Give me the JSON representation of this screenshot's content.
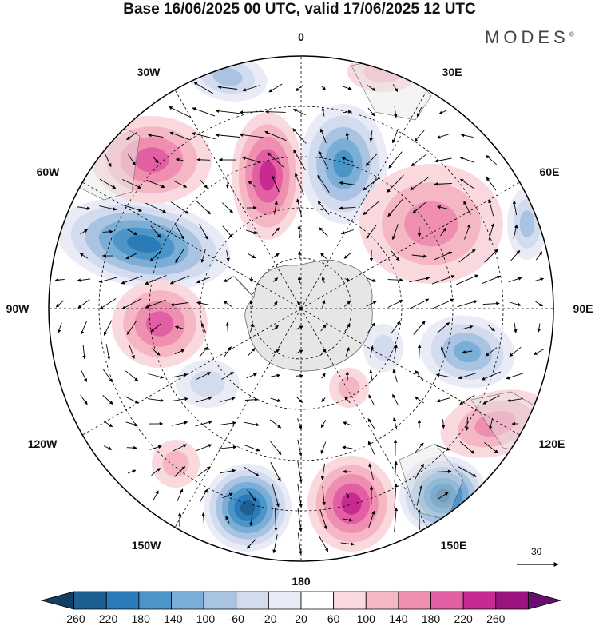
{
  "header": {
    "title": "Base 16/06/2025 00 UTC, valid 17/06/2025 12 UTC",
    "brand": "MODES",
    "brand_mark": "©"
  },
  "longitude_labels": [
    "0",
    "30E",
    "60E",
    "90E",
    "120E",
    "150E",
    "180",
    "150W",
    "120W",
    "90W",
    "60W",
    "30W"
  ],
  "reference_vector": {
    "label": "30"
  },
  "colorbar": {
    "ticks": [
      "-260",
      "-220",
      "-180",
      "-140",
      "-100",
      "-60",
      "-20",
      "20",
      "60",
      "100",
      "140",
      "180",
      "220",
      "260"
    ],
    "colors": [
      "#123f61",
      "#1c5f92",
      "#2b7bb9",
      "#4b95c8",
      "#7aaed6",
      "#a9c3e3",
      "#d2dcee",
      "#e9ecf6",
      "#ffffff",
      "#f9d9de",
      "#f5b7c4",
      "#ef8fb0",
      "#e35fa3",
      "#c82a91",
      "#9a137f",
      "#660f70"
    ]
  },
  "colors": {
    "land": "#e6e6e6",
    "graticule": "#000000",
    "ocean": "#ffffff"
  }
}
